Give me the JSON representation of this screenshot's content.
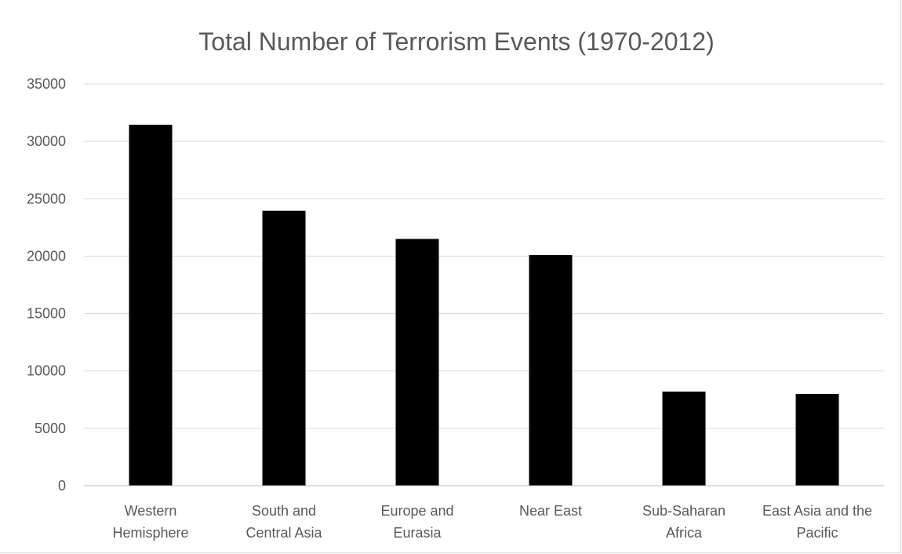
{
  "chart_data": {
    "type": "bar",
    "title": "Total Number of Terrorism Events (1970-2012)",
    "xlabel": "",
    "ylabel": "",
    "categories": [
      [
        "Western",
        "Hemisphere"
      ],
      [
        "South and",
        "Central Asia"
      ],
      [
        "Europe and",
        "Eurasia"
      ],
      [
        "Near East"
      ],
      [
        "Sub-Saharan",
        "Africa"
      ],
      [
        "East Asia and the",
        "Pacific"
      ]
    ],
    "values": [
      31450,
      23950,
      21500,
      20100,
      8200,
      8000
    ],
    "ylim": [
      0,
      35000
    ],
    "yticks": [
      0,
      5000,
      10000,
      15000,
      20000,
      25000,
      30000,
      35000
    ],
    "ytick_labels": [
      "0",
      "5000",
      "10000",
      "15000",
      "20000",
      "25000",
      "30000",
      "35000"
    ],
    "grid": true,
    "legend": "none",
    "bar_color": "#000000"
  }
}
